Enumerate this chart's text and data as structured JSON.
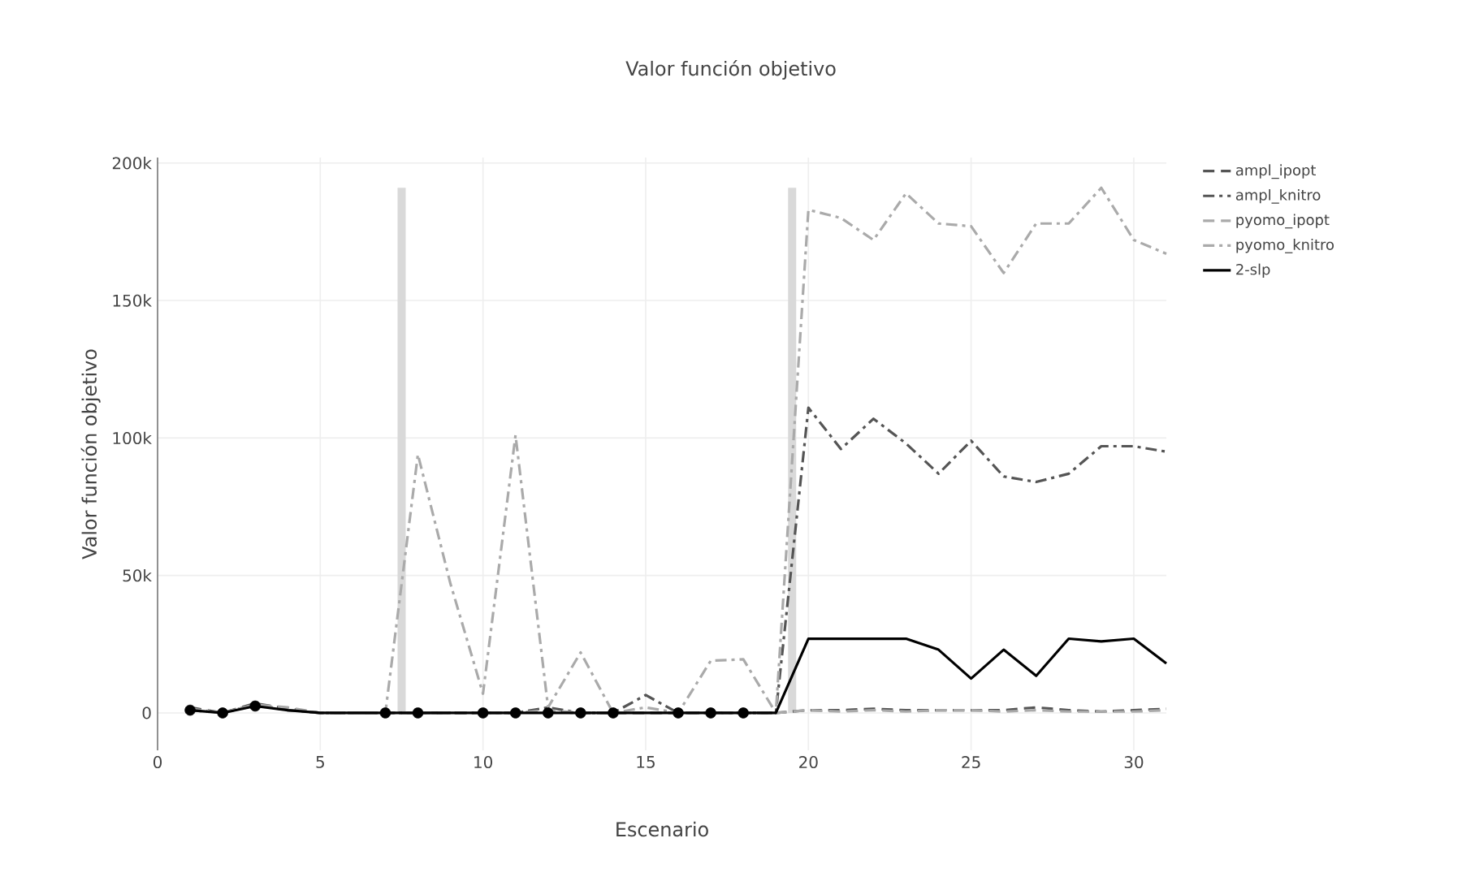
{
  "chart_data": {
    "type": "line",
    "title": "Valor función objetivo",
    "xlabel": "Escenario",
    "ylabel": "Valor función objetivo",
    "x": [
      1,
      2,
      3,
      4,
      5,
      6,
      7,
      8,
      9,
      10,
      11,
      12,
      13,
      14,
      15,
      16,
      17,
      18,
      19,
      20,
      21,
      22,
      23,
      24,
      25,
      26,
      27,
      28,
      29,
      30,
      31
    ],
    "xlim": [
      0,
      31
    ],
    "ylim": [
      -13600,
      202000
    ],
    "xticks": [
      0,
      5,
      10,
      15,
      20,
      25,
      30
    ],
    "yticks": [
      {
        "value": 0,
        "label": "0"
      },
      {
        "value": 50000,
        "label": "50k"
      },
      {
        "value": 100000,
        "label": "100k"
      },
      {
        "value": 150000,
        "label": "150k"
      },
      {
        "value": 200000,
        "label": "200k"
      }
    ],
    "grid": true,
    "legend": "top right",
    "series": [
      {
        "type": "bar",
        "color": "#d9d9d9",
        "x": [
          7.5,
          19.5
        ],
        "values": [
          191000,
          191000
        ]
      },
      {
        "name": "ampl_ipopt",
        "color": "#555555",
        "line_style": "dashed",
        "values": [
          2000,
          0,
          3500,
          1500,
          0,
          0,
          0,
          0,
          0,
          0,
          0,
          500,
          0,
          0,
          0,
          0,
          0,
          0,
          0,
          1000,
          1000,
          1500,
          1000,
          1000,
          1000,
          1000,
          2000,
          1000,
          500,
          1000,
          1500
        ]
      },
      {
        "name": "ampl_knitro",
        "color": "#555555",
        "line_style": "dashdot",
        "values": [
          1000,
          0,
          3000,
          1000,
          0,
          0,
          0,
          0,
          0,
          0,
          0,
          2000,
          0,
          0,
          6500,
          0,
          0,
          0,
          0,
          111000,
          96000,
          107000,
          98000,
          87000,
          99000,
          86000,
          84000,
          87000,
          97000,
          97000,
          95000
        ]
      },
      {
        "name": "pyomo_ipopt",
        "color": "#aaaaaa",
        "line_style": "dashed",
        "values": [
          1000,
          0,
          3000,
          2000,
          0,
          0,
          0,
          0,
          0,
          0,
          0,
          1000,
          0,
          0,
          0,
          0,
          0,
          0,
          0,
          1000,
          500,
          1000,
          500,
          1000,
          1000,
          500,
          1000,
          500,
          500,
          500,
          1000
        ]
      },
      {
        "name": "pyomo_knitro",
        "color": "#aaaaaa",
        "line_style": "dashdot",
        "values": [
          1500,
          0,
          3000,
          1000,
          0,
          0,
          0,
          94000,
          47000,
          7000,
          101000,
          2000,
          22000,
          0,
          2000,
          0,
          19000,
          19500,
          0,
          183000,
          180000,
          172000,
          189000,
          178000,
          177000,
          160000,
          178000,
          178000,
          191000,
          172000,
          167000
        ]
      },
      {
        "name": "2-slp",
        "color": "#000000",
        "line_style": "solid",
        "values": [
          1000,
          0,
          2500,
          1000,
          0,
          0,
          0,
          0,
          0,
          0,
          0,
          0,
          0,
          0,
          0,
          0,
          0,
          0,
          0,
          27000,
          27000,
          27000,
          27000,
          23000,
          12500,
          23000,
          13500,
          27000,
          26000,
          27000,
          18000
        ]
      },
      {
        "type": "scatter",
        "color": "#000000",
        "marker": "circle",
        "x": [
          1,
          2,
          3,
          7,
          8,
          10,
          11,
          12,
          13,
          14,
          16,
          17,
          18
        ],
        "values": [
          1000,
          0,
          2500,
          0,
          0,
          0,
          0,
          0,
          0,
          0,
          0,
          0,
          0
        ]
      }
    ]
  }
}
